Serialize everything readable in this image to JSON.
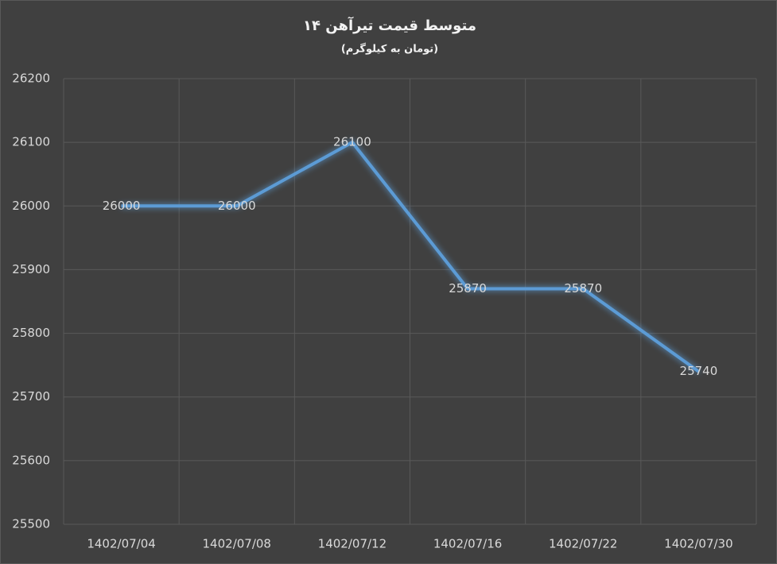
{
  "chart_data": {
    "type": "line",
    "title": "متوسط قیمت تیرآهن ۱۴",
    "subtitle": "(تومان به کیلوگرم)",
    "categories": [
      "1402/07/04",
      "1402/07/08",
      "1402/07/12",
      "1402/07/16",
      "1402/07/22",
      "1402/07/30"
    ],
    "values": [
      26000,
      26000,
      26100,
      25870,
      25870,
      25740
    ],
    "color": "#5b9bd5",
    "ylim": [
      25500,
      26200
    ],
    "yticks": [
      25500,
      25600,
      25700,
      25800,
      25900,
      26000,
      26100,
      26200
    ],
    "grid": true
  }
}
